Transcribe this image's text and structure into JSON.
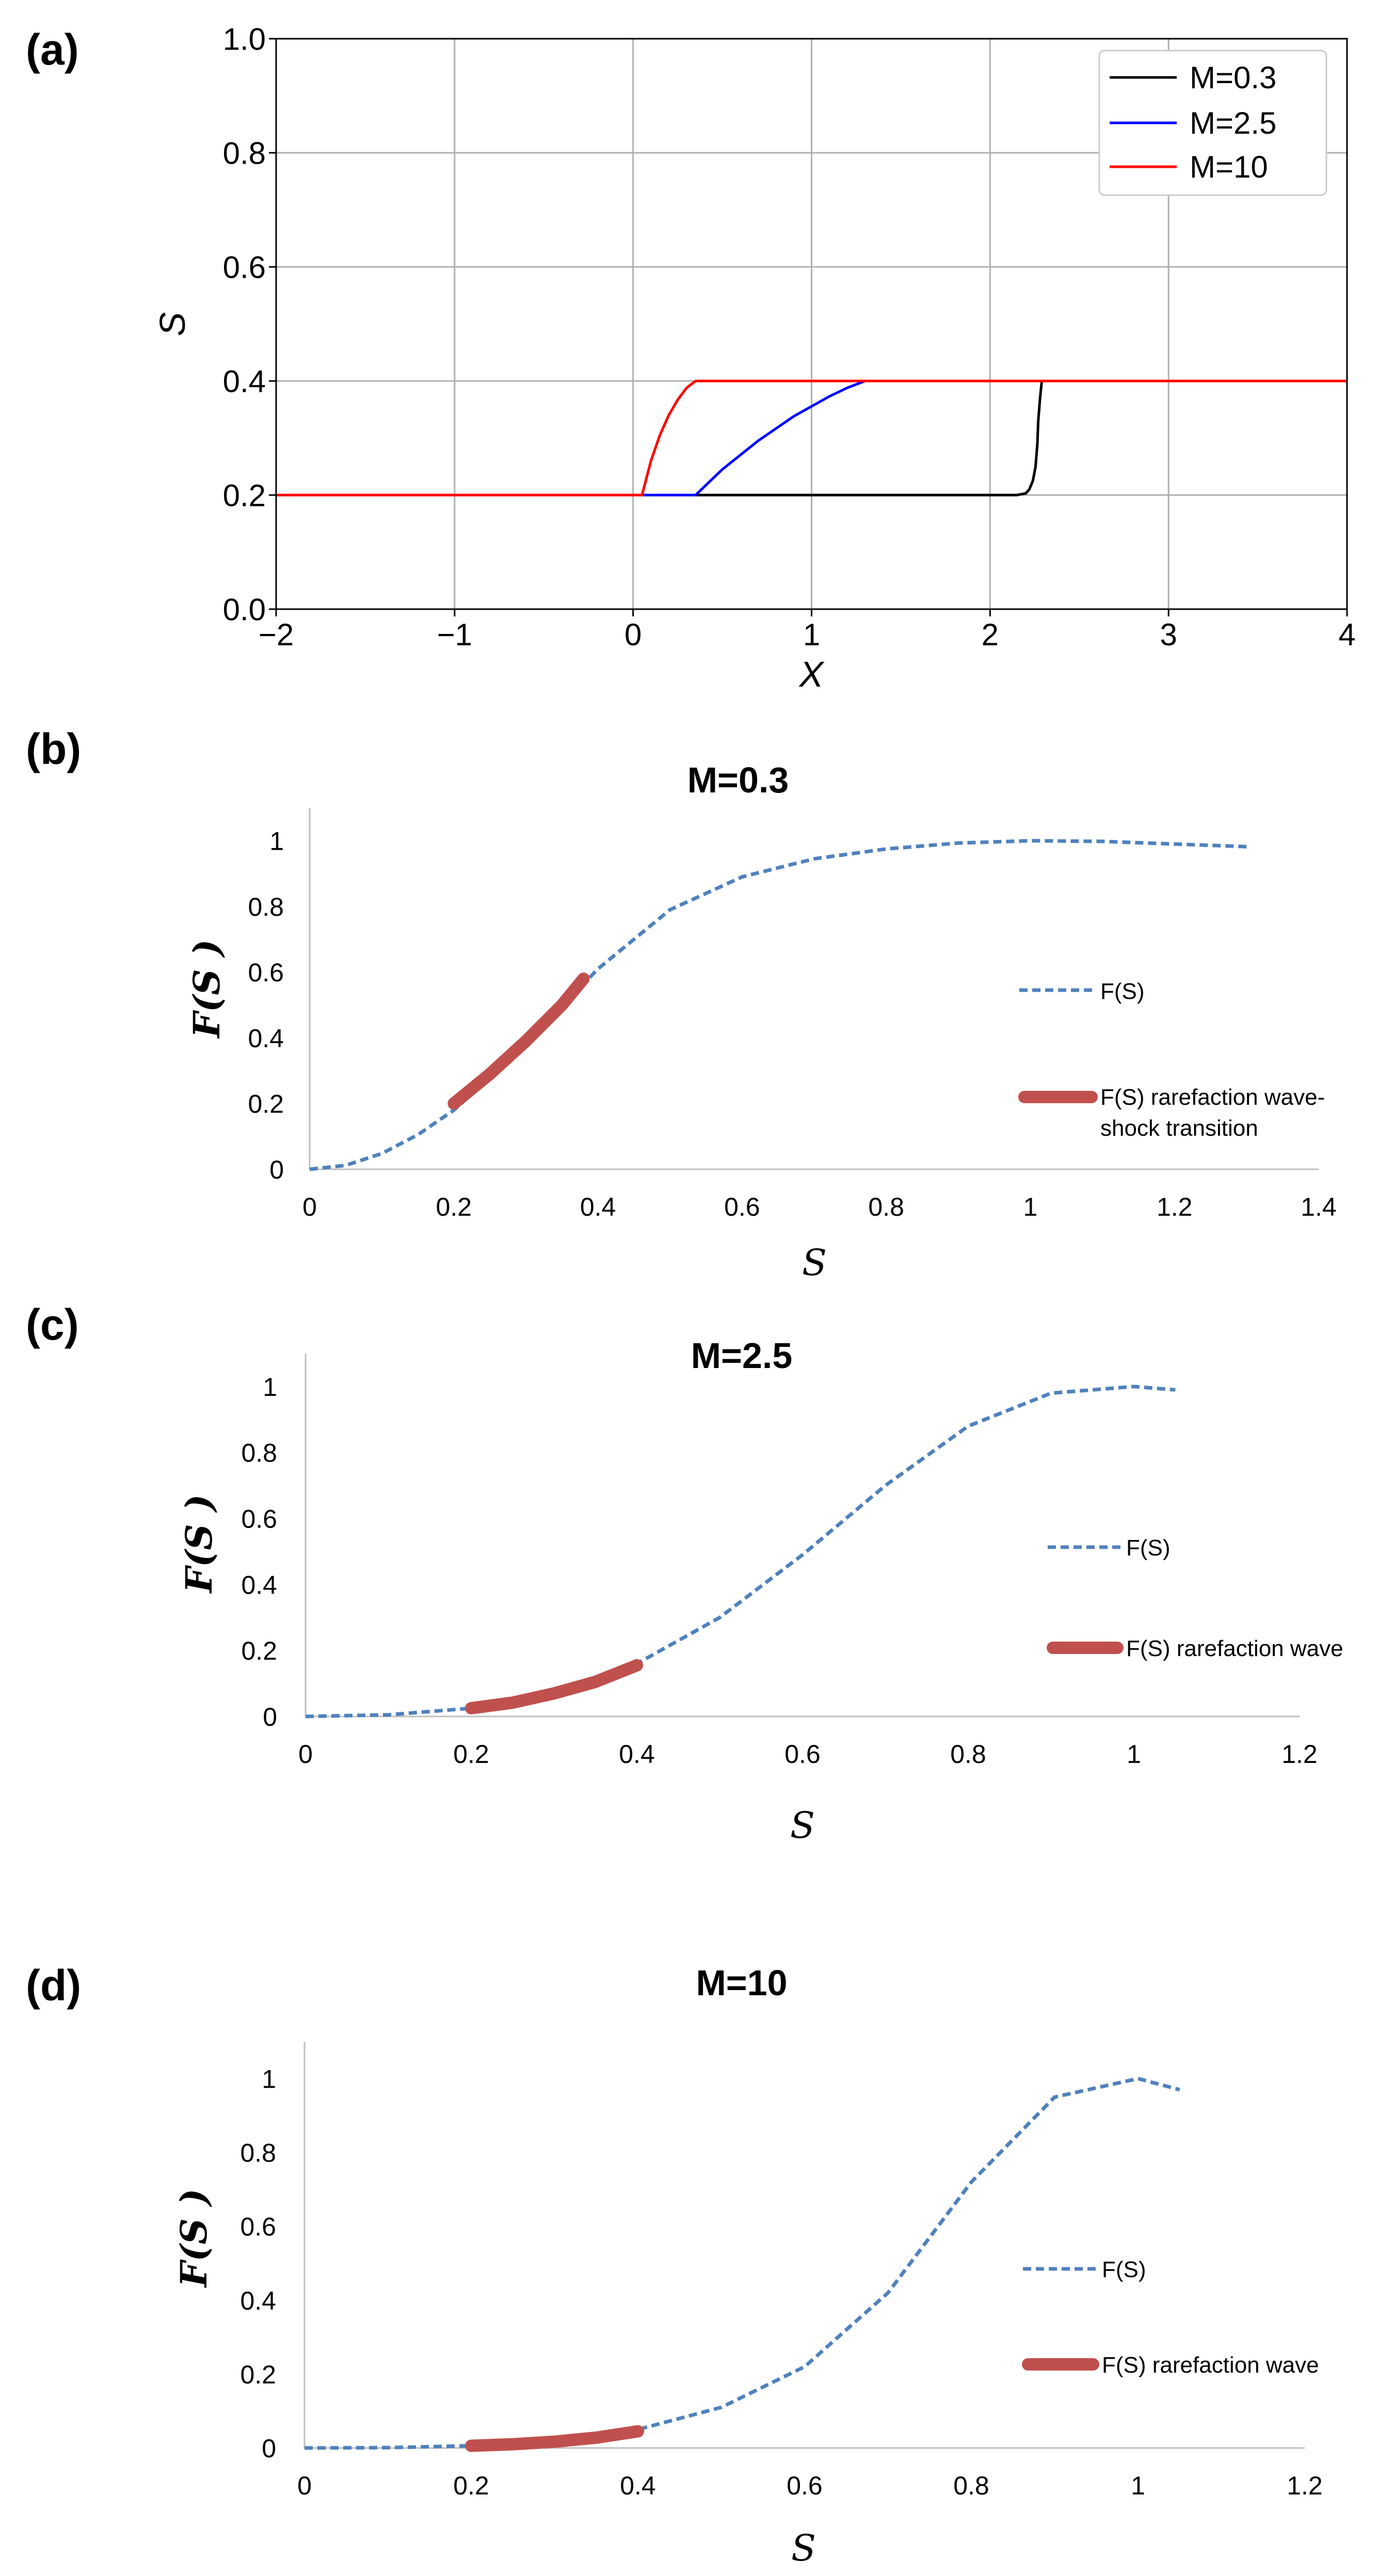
{
  "colors": {
    "black": "#000000",
    "blue": "#0000ff",
    "red": "#ff0000",
    "dash_blue": "#4f81bd",
    "thick_red": "#c0504d",
    "grid": "#b0b0b0",
    "axis_gray": "#bfbfbf"
  },
  "chart_data": [
    {
      "id": "a",
      "panel_label": "(a)",
      "type": "line",
      "title": "",
      "xlabel": "X",
      "ylabel": "S",
      "xlim": [
        -2,
        4
      ],
      "ylim": [
        0,
        1
      ],
      "xticks": [
        -2,
        -1,
        0,
        1,
        2,
        3,
        4
      ],
      "xtick_labels": [
        "−2",
        "−1",
        "0",
        "1",
        "2",
        "3",
        "4"
      ],
      "yticks": [
        0,
        0.2,
        0.4,
        0.6,
        0.8,
        1.0
      ],
      "ytick_labels": [
        "0.0",
        "0.2",
        "0.4",
        "0.6",
        "0.8",
        "1.0"
      ],
      "grid": true,
      "legend_position": "top-right",
      "series": [
        {
          "name": "M=0.3",
          "color": "black",
          "x": [
            -2,
            2.15,
            2.2,
            2.22,
            2.24,
            2.255,
            2.265,
            2.27,
            2.28,
            2.29,
            4
          ],
          "y": [
            0.2,
            0.2,
            0.203,
            0.21,
            0.225,
            0.25,
            0.29,
            0.33,
            0.37,
            0.4,
            0.4
          ]
        },
        {
          "name": "M=2.5",
          "color": "blue",
          "x": [
            -2,
            0.35,
            0.5,
            0.7,
            0.9,
            1.1,
            1.2,
            1.3,
            4
          ],
          "y": [
            0.2,
            0.2,
            0.245,
            0.295,
            0.338,
            0.373,
            0.388,
            0.4,
            0.4
          ]
        },
        {
          "name": "M=10",
          "color": "red",
          "x": [
            -2,
            0.05,
            0.1,
            0.15,
            0.2,
            0.25,
            0.3,
            0.35,
            4
          ],
          "y": [
            0.2,
            0.2,
            0.26,
            0.305,
            0.34,
            0.367,
            0.388,
            0.4,
            0.4
          ]
        }
      ]
    },
    {
      "id": "b",
      "panel_label": "(b)",
      "type": "line",
      "title": "M=0.3",
      "xlabel": "S",
      "ylabel": "F(S )",
      "xlim": [
        0,
        1.4
      ],
      "ylim": [
        0,
        1.1
      ],
      "xticks": [
        0,
        0.2,
        0.4,
        0.6,
        0.8,
        1,
        1.2,
        1.4
      ],
      "xtick_labels": [
        "0",
        "0.2",
        "0.4",
        "0.6",
        "0.8",
        "1",
        "1.2",
        "1.4"
      ],
      "yticks": [
        0,
        0.2,
        0.4,
        0.6,
        0.8,
        1
      ],
      "ytick_labels": [
        "0",
        "0.2",
        "0.4",
        "0.6",
        "0.8",
        "1"
      ],
      "grid": false,
      "legend_position": "right",
      "series": [
        {
          "name": "F(S)",
          "style": "dashed",
          "x": [
            0,
            0.05,
            0.1,
            0.15,
            0.2,
            0.3,
            0.4,
            0.5,
            0.6,
            0.7,
            0.8,
            0.9,
            1.0,
            1.1,
            1.2,
            1.3
          ],
          "y": [
            0,
            0.012,
            0.048,
            0.105,
            0.18,
            0.38,
            0.61,
            0.79,
            0.89,
            0.945,
            0.975,
            0.993,
            1.0,
            0.998,
            0.99,
            0.982
          ]
        },
        {
          "name": "F(S) rarefaction wave-shock transition",
          "style": "thick",
          "x": [
            0.2,
            0.25,
            0.3,
            0.35,
            0.38
          ],
          "y": [
            0.2,
            0.29,
            0.39,
            0.5,
            0.58
          ]
        }
      ]
    },
    {
      "id": "c",
      "panel_label": "(c)",
      "type": "line",
      "title": "M=2.5",
      "xlabel": "S",
      "ylabel": "F(S )",
      "xlim": [
        0,
        1.2
      ],
      "ylim": [
        0,
        1.1
      ],
      "xticks": [
        0,
        0.2,
        0.4,
        0.6,
        0.8,
        1,
        1.2
      ],
      "xtick_labels": [
        "0",
        "0.2",
        "0.4",
        "0.6",
        "0.8",
        "1",
        "1.2"
      ],
      "yticks": [
        0,
        0.2,
        0.4,
        0.6,
        0.8,
        1
      ],
      "ytick_labels": [
        "0",
        "0.2",
        "0.4",
        "0.6",
        "0.8",
        "1"
      ],
      "grid": false,
      "legend_position": "right",
      "series": [
        {
          "name": "F(S)",
          "style": "dashed",
          "x": [
            0,
            0.1,
            0.2,
            0.3,
            0.4,
            0.5,
            0.6,
            0.7,
            0.8,
            0.9,
            1.0,
            1.05
          ],
          "y": [
            0,
            0.005,
            0.025,
            0.075,
            0.16,
            0.3,
            0.49,
            0.7,
            0.88,
            0.98,
            1.0,
            0.99
          ]
        },
        {
          "name": "F(S) rarefaction wave",
          "style": "thick",
          "x": [
            0.2,
            0.25,
            0.3,
            0.35,
            0.4
          ],
          "y": [
            0.025,
            0.042,
            0.07,
            0.105,
            0.155
          ]
        }
      ]
    },
    {
      "id": "d",
      "panel_label": "(d)",
      "type": "line",
      "title": "M=10",
      "xlabel": "S",
      "ylabel": "F(S )",
      "xlim": [
        0,
        1.2
      ],
      "ylim": [
        0,
        1.1
      ],
      "xticks": [
        0,
        0.2,
        0.4,
        0.6,
        0.8,
        1,
        1.2
      ],
      "xtick_labels": [
        "0",
        "0.2",
        "0.4",
        "0.6",
        "0.8",
        "1",
        "1.2"
      ],
      "yticks": [
        0,
        0.2,
        0.4,
        0.6,
        0.8,
        1
      ],
      "ytick_labels": [
        "0",
        "0.2",
        "0.4",
        "0.6",
        "0.8",
        "1"
      ],
      "grid": false,
      "legend_position": "right",
      "series": [
        {
          "name": "F(S)",
          "style": "dashed",
          "x": [
            0,
            0.1,
            0.2,
            0.3,
            0.4,
            0.5,
            0.6,
            0.7,
            0.8,
            0.9,
            1.0,
            1.05
          ],
          "y": [
            0,
            0.001,
            0.006,
            0.02,
            0.05,
            0.11,
            0.22,
            0.42,
            0.72,
            0.95,
            1.0,
            0.97
          ]
        },
        {
          "name": "F(S) rarefaction wave",
          "style": "thick",
          "x": [
            0.2,
            0.25,
            0.3,
            0.35,
            0.4
          ],
          "y": [
            0.006,
            0.01,
            0.017,
            0.028,
            0.045
          ]
        }
      ]
    }
  ]
}
